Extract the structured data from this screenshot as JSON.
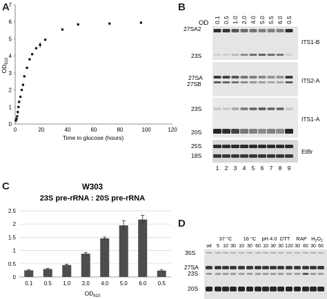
{
  "panelA": {
    "label": "A",
    "chart_data": {
      "type": "scatter",
      "xlabel": "Time in glucose (hours)",
      "ylabel": "OD",
      "ylabel_sub": "610",
      "xlim": [
        0,
        120
      ],
      "ylim": [
        0,
        7
      ],
      "xticks": [
        "0",
        "20",
        "40",
        "60",
        "80",
        "100",
        "120"
      ],
      "yticks": [
        "0",
        "1",
        "2",
        "3",
        "4",
        "5",
        "6",
        "7"
      ],
      "x": [
        0.5,
        1,
        1.5,
        2,
        2.5,
        3,
        4,
        5,
        6,
        7,
        9,
        11,
        13,
        16,
        19,
        23,
        36,
        48,
        72,
        96
      ],
      "y": [
        0.2,
        0.3,
        0.45,
        0.7,
        1.0,
        1.3,
        1.6,
        2.0,
        2.3,
        2.8,
        3.3,
        3.8,
        4.1,
        4.45,
        4.65,
        4.95,
        5.55,
        5.85,
        5.9,
        5.95
      ]
    }
  },
  "panelB": {
    "label": "B",
    "od_label": "OD",
    "od_values": [
      "0.1",
      "0.5",
      "1.0",
      "2.0",
      "4.0",
      "5.0",
      "5.5",
      "6.0",
      "0.5"
    ],
    "lanes": [
      "1",
      "2",
      "3",
      "4",
      "5",
      "6",
      "7",
      "8",
      "9"
    ],
    "blots": [
      {
        "probe": "ITS1-B",
        "left_labels": [
          "27SA2",
          "23S"
        ]
      },
      {
        "probe": "ITS2-A",
        "left_labels": [
          "27SA",
          "27SB"
        ]
      },
      {
        "probe": "ITS1-A",
        "left_labels": [
          "23S",
          "20S"
        ]
      },
      {
        "probe": "EtBr",
        "left_labels": [
          "25S",
          "18S"
        ]
      }
    ]
  },
  "panelC": {
    "label": "C",
    "title": "W303",
    "subtitle": "23S pre-rRNA : 20S pre-rRNA",
    "chart_data": {
      "type": "bar",
      "title": "W303",
      "subtitle": "23S pre-rRNA : 20S pre-rRNA",
      "categories": [
        "0.1",
        "0.5",
        "1.0",
        "2.0",
        "4.0",
        "5.0",
        "6.0",
        "0.5"
      ],
      "values": [
        0.25,
        0.3,
        0.45,
        0.88,
        1.46,
        1.95,
        2.17,
        0.24
      ],
      "errors": [
        0.02,
        0.02,
        0.03,
        0.05,
        0.05,
        0.18,
        0.16,
        0.03
      ],
      "xlabel": "OD",
      "xlabel_sub": "610",
      "ylim": [
        0,
        2.5
      ],
      "yticks": [
        "0",
        "0.5",
        "1",
        "1.5",
        "2",
        "2.5"
      ]
    }
  },
  "panelD": {
    "label": "D",
    "groups": [
      {
        "name": "37 °C",
        "times": [
          "5",
          "10",
          "30"
        ]
      },
      {
        "name": "16 °C",
        "times": [
          "10",
          "30",
          "60"
        ]
      },
      {
        "name": "pH 4.0",
        "times": [
          "10",
          "30"
        ]
      },
      {
        "name": "DTT",
        "times": [
          "30",
          "120"
        ]
      },
      {
        "name": "RAP",
        "times": [
          "30",
          "60"
        ]
      },
      {
        "name": "H2O2",
        "times": [
          "30",
          "60"
        ]
      }
    ],
    "wt_label": "wt",
    "band_labels": [
      "35S",
      "27SA",
      "23S",
      "20S"
    ]
  },
  "colors": {
    "bar": "#4d4d4d",
    "point": "#111111",
    "gel_bg": "#e6e6e6",
    "band": "#1a1a1a"
  }
}
